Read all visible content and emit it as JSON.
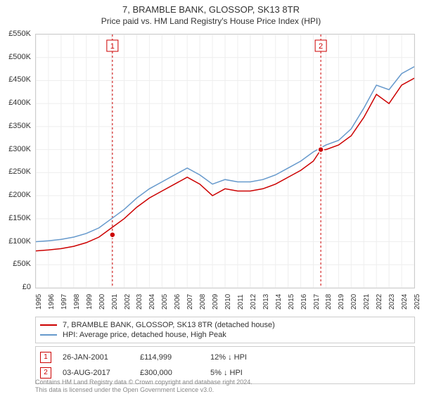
{
  "title": "7, BRAMBLE BANK, GLOSSOP, SK13 8TR",
  "subtitle": "Price paid vs. HM Land Registry's House Price Index (HPI)",
  "chart": {
    "type": "line",
    "background_color": "#ffffff",
    "grid_color": "#eeeeee",
    "border_color": "#cccccc",
    "x": {
      "min": 1995,
      "max": 2025,
      "ticks": [
        1995,
        1996,
        1997,
        1998,
        1999,
        2000,
        2001,
        2002,
        2003,
        2004,
        2005,
        2006,
        2007,
        2008,
        2009,
        2010,
        2011,
        2012,
        2013,
        2014,
        2015,
        2016,
        2017,
        2018,
        2019,
        2020,
        2021,
        2022,
        2023,
        2024,
        2025
      ],
      "label_fontsize": 10
    },
    "y": {
      "min": 0,
      "max": 550000,
      "ticks": [
        0,
        50000,
        100000,
        150000,
        200000,
        250000,
        300000,
        350000,
        400000,
        450000,
        500000,
        550000
      ],
      "tick_labels": [
        "£0",
        "£50K",
        "£100K",
        "£150K",
        "£200K",
        "£250K",
        "£300K",
        "£350K",
        "£400K",
        "£450K",
        "£500K",
        "£550K"
      ],
      "label_fontsize": 11
    },
    "series": [
      {
        "id": "price_paid",
        "label": "7, BRAMBLE BANK, GLOSSOP, SK13 8TR (detached house)",
        "color": "#cc0000",
        "line_width": 1.5,
        "x": [
          1995,
          1996,
          1997,
          1998,
          1999,
          2000,
          2001,
          2002,
          2003,
          2004,
          2005,
          2006,
          2007,
          2008,
          2009,
          2010,
          2011,
          2012,
          2013,
          2014,
          2015,
          2016,
          2017,
          2017.6,
          2018,
          2019,
          2020,
          2021,
          2022,
          2023,
          2024,
          2025
        ],
        "y": [
          80000,
          82000,
          85000,
          90000,
          98000,
          110000,
          130000,
          150000,
          175000,
          195000,
          210000,
          225000,
          240000,
          225000,
          200000,
          215000,
          210000,
          210000,
          215000,
          225000,
          240000,
          255000,
          275000,
          300000,
          300000,
          310000,
          330000,
          370000,
          420000,
          400000,
          440000,
          455000
        ]
      },
      {
        "id": "hpi",
        "label": "HPI: Average price, detached house, High Peak",
        "color": "#6699cc",
        "line_width": 1.5,
        "x": [
          1995,
          1996,
          1997,
          1998,
          1999,
          2000,
          2001,
          2002,
          2003,
          2004,
          2005,
          2006,
          2007,
          2008,
          2009,
          2010,
          2011,
          2012,
          2013,
          2014,
          2015,
          2016,
          2017,
          2018,
          2019,
          2020,
          2021,
          2022,
          2023,
          2024,
          2025
        ],
        "y": [
          100000,
          102000,
          105000,
          110000,
          118000,
          130000,
          150000,
          170000,
          195000,
          215000,
          230000,
          245000,
          260000,
          245000,
          225000,
          235000,
          230000,
          230000,
          235000,
          245000,
          260000,
          275000,
          295000,
          310000,
          320000,
          345000,
          390000,
          440000,
          430000,
          465000,
          480000
        ]
      }
    ],
    "markers": [
      {
        "num": "1",
        "x": 2001.07,
        "y": 114999,
        "line_color": "#cc0000"
      },
      {
        "num": "2",
        "x": 2017.59,
        "y": 300000,
        "line_color": "#cc0000"
      }
    ],
    "marker_style": {
      "dot_fill": "#cc0000",
      "dot_stroke": "#ffffff",
      "dot_radius": 4,
      "box_border": "#cc0000",
      "box_text": "#cc0000",
      "dash": "3,3"
    }
  },
  "legend": {
    "items": [
      {
        "color": "#cc0000",
        "label": "7, BRAMBLE BANK, GLOSSOP, SK13 8TR (detached house)"
      },
      {
        "color": "#6699cc",
        "label": "HPI: Average price, detached house, High Peak"
      }
    ]
  },
  "events": [
    {
      "num": "1",
      "date": "26-JAN-2001",
      "price": "£114,999",
      "delta": "12% ↓ HPI"
    },
    {
      "num": "2",
      "date": "03-AUG-2017",
      "price": "£300,000",
      "delta": "5% ↓ HPI"
    }
  ],
  "footer": {
    "line1": "Contains HM Land Registry data © Crown copyright and database right 2024.",
    "line2": "This data is licensed under the Open Government Licence v3.0."
  }
}
